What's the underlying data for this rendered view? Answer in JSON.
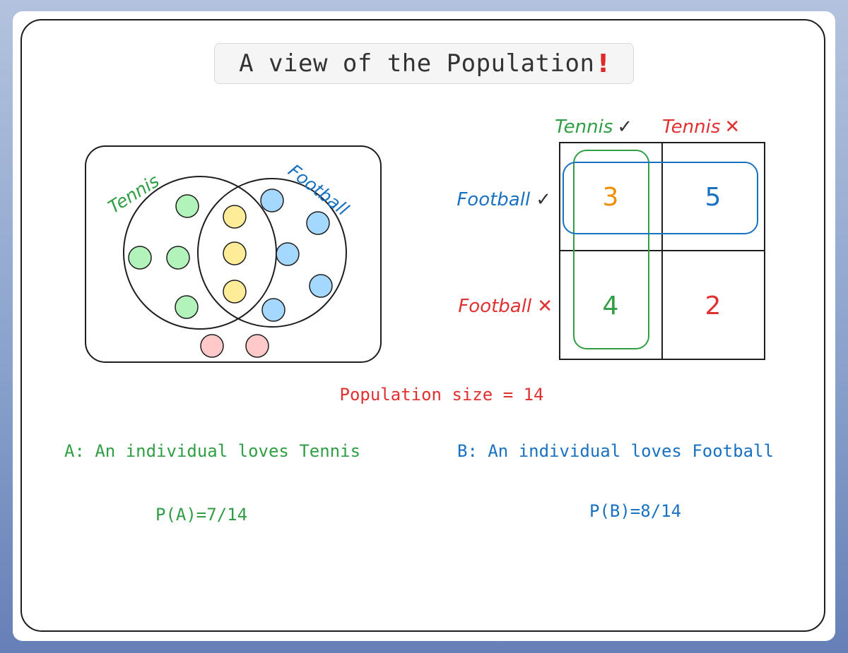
{
  "title": {
    "text": "A view of the Population",
    "mark": "!"
  },
  "venn": {
    "set_a_label": "Tennis",
    "set_b_label": "Football",
    "counts": {
      "tennis_only": 4,
      "both": 3,
      "football_only": 5,
      "neither": 2
    },
    "colors": {
      "tennis_only": "#b2f2bb",
      "both": "#ffec99",
      "football_only": "#a5d8ff",
      "neither": "#ffc9c9"
    }
  },
  "table": {
    "col_headers": [
      {
        "label": "Tennis",
        "mark": "✓",
        "color": "#2f9e44",
        "mark_color": "#333333"
      },
      {
        "label": "Tennis",
        "mark": "✕",
        "color": "#e03131",
        "mark_color": "#e03131"
      }
    ],
    "row_headers": [
      {
        "label": "Football",
        "mark": "✓",
        "color": "#1971c2",
        "mark_color": "#333333"
      },
      {
        "label": "Football",
        "mark": "✕",
        "color": "#e03131",
        "mark_color": "#e03131"
      }
    ],
    "cells": [
      {
        "value": "3",
        "color": "#f08c00"
      },
      {
        "value": "5",
        "color": "#1971c2"
      },
      {
        "value": "4",
        "color": "#2f9e44"
      },
      {
        "value": "2",
        "color": "#e03131"
      }
    ],
    "tennis_highlight_color": "#2f9e44",
    "football_highlight_color": "#1971c2"
  },
  "population": {
    "text": "Population size = 14",
    "color": "#e03131"
  },
  "events": {
    "a": {
      "text": "A: An individual loves Tennis",
      "color": "#2f9e44"
    },
    "b": {
      "text": "B: An individual loves Football",
      "color": "#1971c2"
    }
  },
  "probabilities": {
    "pa": {
      "text": "P(A)=7/14",
      "color": "#2f9e44"
    },
    "pb": {
      "text": "P(B)=8/14",
      "color": "#1971c2"
    }
  }
}
